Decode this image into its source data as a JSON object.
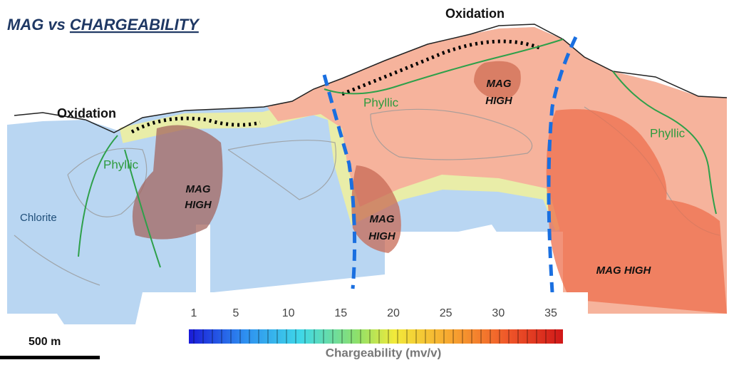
{
  "title": {
    "lead": "MAG vs",
    "underlined": "CHARGEABILITY"
  },
  "oxidation_labels": [
    "Oxidation",
    "Oxidation"
  ],
  "phyllic_labels": [
    "Phyllic",
    "Phyllic",
    "Phyllic"
  ],
  "chlorite_label": "Chlorite",
  "mag_high_labels": [
    [
      "MAG",
      "HIGH"
    ],
    [
      "MAG",
      "HIGH"
    ],
    [
      "MAG",
      "HIGH"
    ],
    [
      "MAG HIGH"
    ]
  ],
  "scale_bar": {
    "label": "500 m"
  },
  "colorbar": {
    "ticks": [
      1,
      5,
      10,
      15,
      20,
      25,
      30,
      35
    ],
    "label": "Chargeability (mv/v)"
  }
}
